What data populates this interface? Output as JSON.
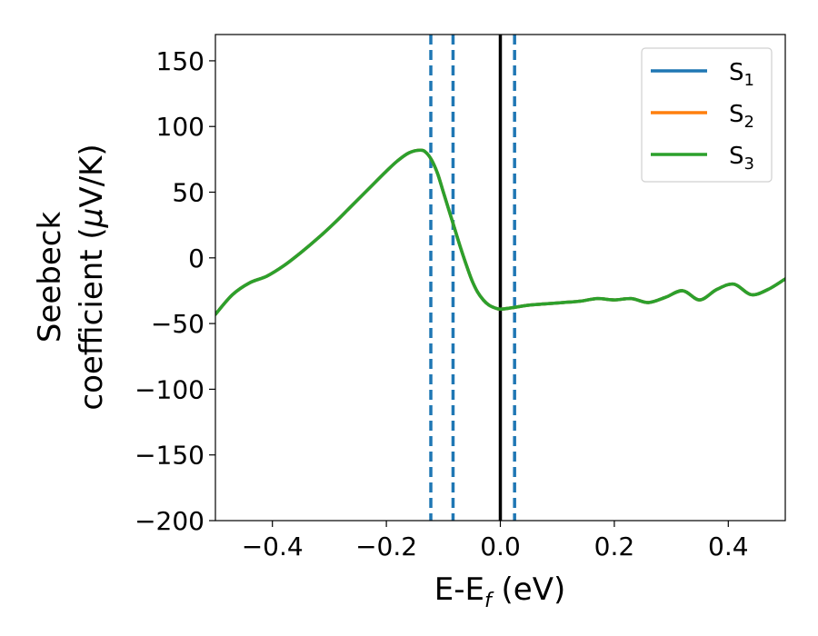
{
  "chart_data": {
    "type": "line",
    "xlabel": "E-E",
    "xlabel_sub": "f",
    "xlabel_unit": " (eV)",
    "ylabel_line1": "Seebeck",
    "ylabel_line2": "coefficient  (",
    "ylabel_mu": "μ",
    "ylabel_unit": "V/K)",
    "xlim": [
      -0.5,
      0.5
    ],
    "ylim": [
      -200,
      170
    ],
    "xticks": [
      -0.4,
      -0.2,
      0.0,
      0.2,
      0.4
    ],
    "xtick_labels": [
      "−0.4",
      "−0.2",
      "0.0",
      "0.2",
      "0.4"
    ],
    "yticks": [
      -200,
      -150,
      -100,
      -50,
      0,
      50,
      100,
      150
    ],
    "ytick_labels": [
      "−200",
      "−150",
      "−100",
      "−50",
      "0",
      "50",
      "100",
      "150"
    ],
    "grid": false,
    "legend_position": "top-right",
    "series": [
      {
        "name": "S",
        "sub": "1",
        "color": "#1f77b4"
      },
      {
        "name": "S",
        "sub": "2",
        "color": "#ff7f0e"
      },
      {
        "name": "S",
        "sub": "3",
        "color": "#2ca02c"
      }
    ],
    "curve": {
      "x": [
        -0.5,
        -0.47,
        -0.44,
        -0.41,
        -0.38,
        -0.35,
        -0.32,
        -0.29,
        -0.26,
        -0.23,
        -0.2,
        -0.18,
        -0.16,
        -0.14,
        -0.13,
        -0.12,
        -0.11,
        -0.1,
        -0.09,
        -0.08,
        -0.07,
        -0.06,
        -0.05,
        -0.04,
        -0.03,
        -0.02,
        -0.01,
        0.0,
        0.02,
        0.05,
        0.08,
        0.11,
        0.14,
        0.17,
        0.2,
        0.23,
        0.26,
        0.29,
        0.32,
        0.35,
        0.38,
        0.41,
        0.44,
        0.47,
        0.5
      ],
      "y": [
        -43,
        -28,
        -19,
        -14,
        -6,
        4,
        15,
        27,
        40,
        53,
        66,
        74,
        80,
        82,
        80,
        74,
        64,
        50,
        36,
        22,
        8,
        -5,
        -17,
        -26,
        -32,
        -36,
        -38,
        -39,
        -38,
        -36,
        -35,
        -34,
        -33,
        -31,
        -32,
        -31,
        -34,
        -30,
        -25,
        -32,
        -24,
        -20,
        -28,
        -24,
        -16
      ]
    },
    "vlines": [
      {
        "x": 0.0,
        "style": "solid",
        "color": "#000000"
      },
      {
        "x": -0.122,
        "style": "dashed",
        "color": "#1f77b4"
      },
      {
        "x": -0.083,
        "style": "dashed",
        "color": "#1f77b4"
      },
      {
        "x": 0.025,
        "style": "dashed",
        "color": "#1f77b4"
      }
    ]
  }
}
